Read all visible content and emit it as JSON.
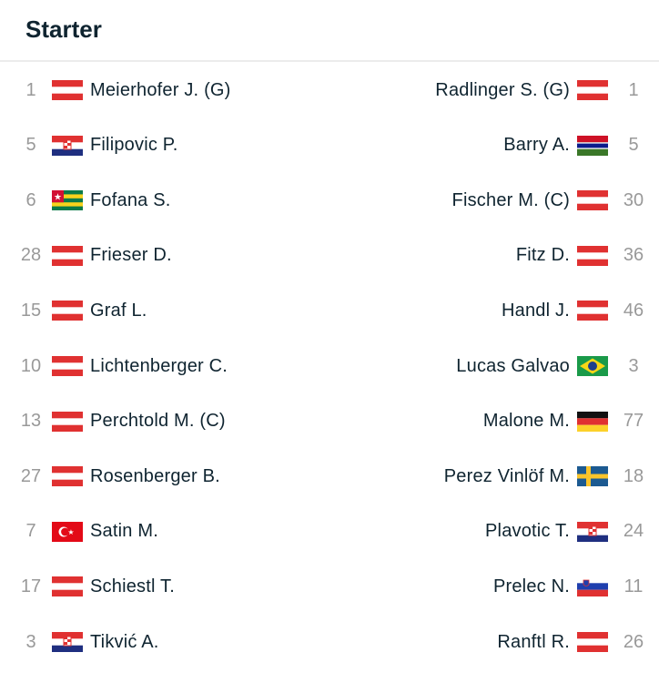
{
  "header": {
    "title": "Starter"
  },
  "home": [
    {
      "number": "1",
      "flag": "at",
      "name": "Meierhofer J. (G)"
    },
    {
      "number": "5",
      "flag": "hr",
      "name": "Filipovic P."
    },
    {
      "number": "6",
      "flag": "tg",
      "name": "Fofana S."
    },
    {
      "number": "28",
      "flag": "at",
      "name": "Frieser D."
    },
    {
      "number": "15",
      "flag": "at",
      "name": "Graf L."
    },
    {
      "number": "10",
      "flag": "at",
      "name": "Lichtenberger C."
    },
    {
      "number": "13",
      "flag": "at",
      "name": "Perchtold M. (C)"
    },
    {
      "number": "27",
      "flag": "at",
      "name": "Rosenberger B."
    },
    {
      "number": "7",
      "flag": "tr",
      "name": "Satin M."
    },
    {
      "number": "17",
      "flag": "at",
      "name": "Schiestl T."
    },
    {
      "number": "3",
      "flag": "hr",
      "name": "Tikvić A."
    }
  ],
  "away": [
    {
      "number": "1",
      "flag": "at",
      "name": "Radlinger S. (G)"
    },
    {
      "number": "5",
      "flag": "gm",
      "name": "Barry A."
    },
    {
      "number": "30",
      "flag": "at",
      "name": "Fischer M. (C)"
    },
    {
      "number": "36",
      "flag": "at",
      "name": "Fitz D."
    },
    {
      "number": "46",
      "flag": "at",
      "name": "Handl J."
    },
    {
      "number": "3",
      "flag": "br",
      "name": "Lucas Galvao"
    },
    {
      "number": "77",
      "flag": "de",
      "name": "Malone M."
    },
    {
      "number": "18",
      "flag": "se",
      "name": "Perez Vinlöf M."
    },
    {
      "number": "24",
      "flag": "hr",
      "name": "Plavotic T."
    },
    {
      "number": "11",
      "flag": "si",
      "name": "Prelec N."
    },
    {
      "number": "26",
      "flag": "at",
      "name": "Ranftl R."
    }
  ]
}
